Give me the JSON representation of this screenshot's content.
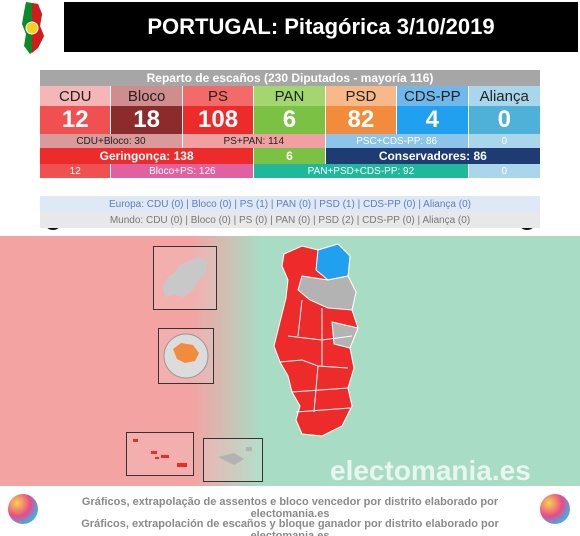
{
  "title": "PORTUGAL: Pitagórica 3/10/2019",
  "table": {
    "header": "Reparto de escaños (230 Diputados - mayoría 116)",
    "parties": [
      {
        "name": "CDU",
        "seats": "12",
        "name_bg": "#f4b6b6",
        "seat_bg": "#f05050"
      },
      {
        "name": "Bloco",
        "seats": "18",
        "name_bg": "#d08d8d",
        "seat_bg": "#8b2b2b"
      },
      {
        "name": "PS",
        "seats": "108",
        "name_bg": "#f26a6a",
        "seat_bg": "#ee2b2b"
      },
      {
        "name": "PAN",
        "seats": "6",
        "name_bg": "#a4d66f",
        "seat_bg": "#7bc143"
      },
      {
        "name": "PSD",
        "seats": "82",
        "name_bg": "#f7b88a",
        "seat_bg": "#f28c3c"
      },
      {
        "name": "CDS-PP",
        "seats": "4",
        "name_bg": "#70b8ea",
        "seat_bg": "#22a0f0"
      },
      {
        "name": "Aliança",
        "seats": "0",
        "name_bg": "#a9d6ea",
        "seat_bg": "#4fb0d8"
      }
    ],
    "combos": [
      {
        "text": "CDU+Bloco: 30"
      },
      {
        "text": "PS+PAN: 114"
      },
      {
        "text": "PSC+CDS-PP: 86"
      },
      {
        "text": "0"
      }
    ],
    "blocs": {
      "geringonca": "Geringonça: 138",
      "pan": "6",
      "conservadores": "Conservadores: 86"
    },
    "last_row": {
      "a": "12",
      "b": "Bloco+PS: 126",
      "c": "PAN+PSD+CDS-PP: 92",
      "d": "0"
    }
  },
  "europa": "Europa: CDU (0) | Bloco (0) | PS (1) | PAN (0) | PSD (1) | CDS-PP (0) | Aliança (0)",
  "mundo": "Mundo: CDU (0) | Bloco (0) | PS (0) | PAN (0) | PSD (2) | CDS-PP (0) | Aliança (0)",
  "brand": "electomania.es",
  "footer": {
    "line1": "Gráficos, extrapolação de assentos e bloco vencedor por distrito elaborado por electomania.es",
    "line2": "Gráficos, extrapolación de escaños y bloque ganador por distrito elaborado por electomania.es"
  },
  "colors": {
    "geringonca": "#ee2b2b",
    "conservadores": "#1f3b73",
    "map_red": "#ee2b2b",
    "map_blue": "#22a0f0",
    "map_grey": "#b3b3b3"
  }
}
